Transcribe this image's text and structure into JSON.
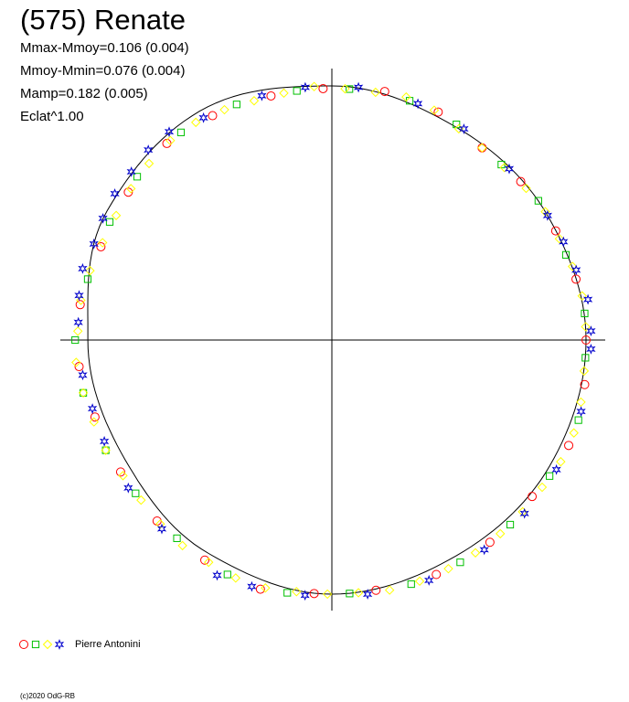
{
  "header": {
    "title": "(575) Renate",
    "stats": [
      "Mmax-Mmoy=0.106 (0.004)",
      "Mmoy-Mmin=0.076 (0.004)",
      "Mamp=0.182 (0.005)",
      "Eclat^1.00"
    ]
  },
  "legend": {
    "observer": "Pierre Antonini",
    "markers": [
      {
        "shape": "circle",
        "color": "#ff0000"
      },
      {
        "shape": "square",
        "color": "#00c000"
      },
      {
        "shape": "diamond",
        "color": "#ffff00"
      },
      {
        "shape": "star",
        "color": "#0000cc"
      }
    ]
  },
  "footer": {
    "copyright": "(c)2020 OdG-RB"
  },
  "chart_data": {
    "type": "scatter",
    "projection": "polar",
    "title": "(575) Renate",
    "xlabel": "",
    "ylabel": "",
    "grid": false,
    "axes": "crosshair through center",
    "model_curve": {
      "description": "fitted light curve (thin black line)",
      "radius_by_angle_deg": [
        [
          0,
          1.0
        ],
        [
          30,
          0.98
        ],
        [
          60,
          0.97
        ],
        [
          90,
          1.0
        ],
        [
          120,
          1.04
        ],
        [
          150,
          1.02
        ],
        [
          180,
          0.96
        ],
        [
          210,
          0.94
        ],
        [
          240,
          0.97
        ],
        [
          270,
          1.0
        ],
        [
          300,
          0.98
        ],
        [
          330,
          0.99
        ]
      ]
    },
    "series": [
      {
        "name": "Pierre Antonini",
        "marker": "circle",
        "color": "#ff0000",
        "points": [
          [
            0,
            1.0
          ],
          [
            14,
            0.99
          ],
          [
            26,
            0.98
          ],
          [
            40,
            0.97
          ],
          [
            52,
            0.96
          ],
          [
            65,
            0.99
          ],
          [
            78,
            1.0
          ],
          [
            92,
            0.99
          ],
          [
            104,
            0.99
          ],
          [
            118,
            1.0
          ],
          [
            130,
            1.01
          ],
          [
            144,
            0.99
          ],
          [
            158,
            0.98
          ],
          [
            172,
            1.0
          ],
          [
            186,
            1.0
          ],
          [
            198,
            0.98
          ],
          [
            212,
            0.98
          ],
          [
            226,
            0.99
          ],
          [
            240,
            1.0
          ],
          [
            254,
            1.02
          ],
          [
            266,
            1.0
          ],
          [
            280,
            1.0
          ],
          [
            294,
            1.01
          ],
          [
            308,
            1.01
          ],
          [
            322,
            1.0
          ],
          [
            336,
            1.02
          ],
          [
            350,
            1.01
          ]
        ]
      },
      {
        "name": "Pierre Antonini",
        "marker": "square",
        "color": "#00c000",
        "points": [
          [
            6,
            1.0
          ],
          [
            20,
            0.98
          ],
          [
            34,
            0.98
          ],
          [
            46,
            0.96
          ],
          [
            60,
            0.98
          ],
          [
            72,
            0.99
          ],
          [
            86,
            0.99
          ],
          [
            98,
            0.99
          ],
          [
            112,
            1.0
          ],
          [
            126,
            1.01
          ],
          [
            140,
            1.0
          ],
          [
            152,
            0.99
          ],
          [
            166,
            0.99
          ],
          [
            180,
            1.01
          ],
          [
            192,
            1.0
          ],
          [
            206,
            0.99
          ],
          [
            218,
            0.98
          ],
          [
            232,
            0.99
          ],
          [
            246,
            1.01
          ],
          [
            260,
            1.01
          ],
          [
            274,
            1.0
          ],
          [
            288,
            1.01
          ],
          [
            300,
            1.01
          ],
          [
            314,
            1.01
          ],
          [
            328,
            1.01
          ],
          [
            342,
            1.02
          ],
          [
            356,
            1.0
          ]
        ]
      },
      {
        "name": "Pierre Antonini",
        "marker": "diamond",
        "color": "#ffff00",
        "points": [
          [
            3,
            1.0
          ],
          [
            10,
            1.0
          ],
          [
            17,
            0.99
          ],
          [
            24,
            0.98
          ],
          [
            31,
            0.98
          ],
          [
            38,
            0.97
          ],
          [
            45,
            0.96
          ],
          [
            52,
            0.96
          ],
          [
            59,
            0.97
          ],
          [
            66,
            0.99
          ],
          [
            73,
            1.0
          ],
          [
            80,
            0.99
          ],
          [
            87,
            0.99
          ],
          [
            94,
            1.0
          ],
          [
            101,
            0.99
          ],
          [
            108,
            0.99
          ],
          [
            115,
            1.0
          ],
          [
            122,
            1.01
          ],
          [
            129,
            1.01
          ],
          [
            136,
            1.0
          ],
          [
            143,
            0.99
          ],
          [
            150,
            0.98
          ],
          [
            157,
            0.98
          ],
          [
            164,
            0.99
          ],
          [
            171,
            1.0
          ],
          [
            178,
            1.0
          ],
          [
            185,
            1.01
          ],
          [
            192,
            1.0
          ],
          [
            199,
            0.99
          ],
          [
            206,
            0.99
          ],
          [
            213,
            0.98
          ],
          [
            220,
            0.98
          ],
          [
            227,
            0.99
          ],
          [
            234,
            1.0
          ],
          [
            241,
            1.0
          ],
          [
            248,
            1.01
          ],
          [
            255,
            1.01
          ],
          [
            262,
            1.0
          ],
          [
            269,
            1.0
          ],
          [
            276,
            1.0
          ],
          [
            283,
            1.01
          ],
          [
            290,
            1.01
          ],
          [
            297,
            1.01
          ],
          [
            304,
            1.01
          ],
          [
            311,
            1.01
          ],
          [
            318,
            1.01
          ],
          [
            325,
            1.01
          ],
          [
            332,
            1.02
          ],
          [
            339,
            1.02
          ],
          [
            346,
            1.01
          ],
          [
            353,
            1.0
          ]
        ]
      },
      {
        "name": "Pierre Antonini",
        "marker": "star",
        "color": "#0000cc",
        "points": [
          [
            2,
            1.02
          ],
          [
            9,
            1.02
          ],
          [
            16,
            1.0
          ],
          [
            23,
            0.99
          ],
          [
            30,
            0.98
          ],
          [
            44,
            0.97
          ],
          [
            58,
            0.98
          ],
          [
            70,
            0.99
          ],
          [
            84,
            1.0
          ],
          [
            96,
            1.0
          ],
          [
            106,
            1.0
          ],
          [
            120,
            1.01
          ],
          [
            128,
            1.04
          ],
          [
            134,
            1.04
          ],
          [
            140,
            1.03
          ],
          [
            146,
            1.03
          ],
          [
            152,
            1.02
          ],
          [
            158,
            1.01
          ],
          [
            164,
            1.02
          ],
          [
            170,
            1.01
          ],
          [
            176,
            1.0
          ],
          [
            188,
            0.99
          ],
          [
            196,
            0.98
          ],
          [
            204,
            0.98
          ],
          [
            216,
            0.99
          ],
          [
            228,
            1.0
          ],
          [
            244,
            1.03
          ],
          [
            252,
            1.02
          ],
          [
            264,
            1.01
          ],
          [
            278,
            1.01
          ],
          [
            292,
            1.02
          ],
          [
            306,
            1.02
          ],
          [
            318,
            1.02
          ],
          [
            330,
            1.02
          ],
          [
            344,
            1.02
          ],
          [
            358,
            1.02
          ]
        ]
      }
    ]
  }
}
